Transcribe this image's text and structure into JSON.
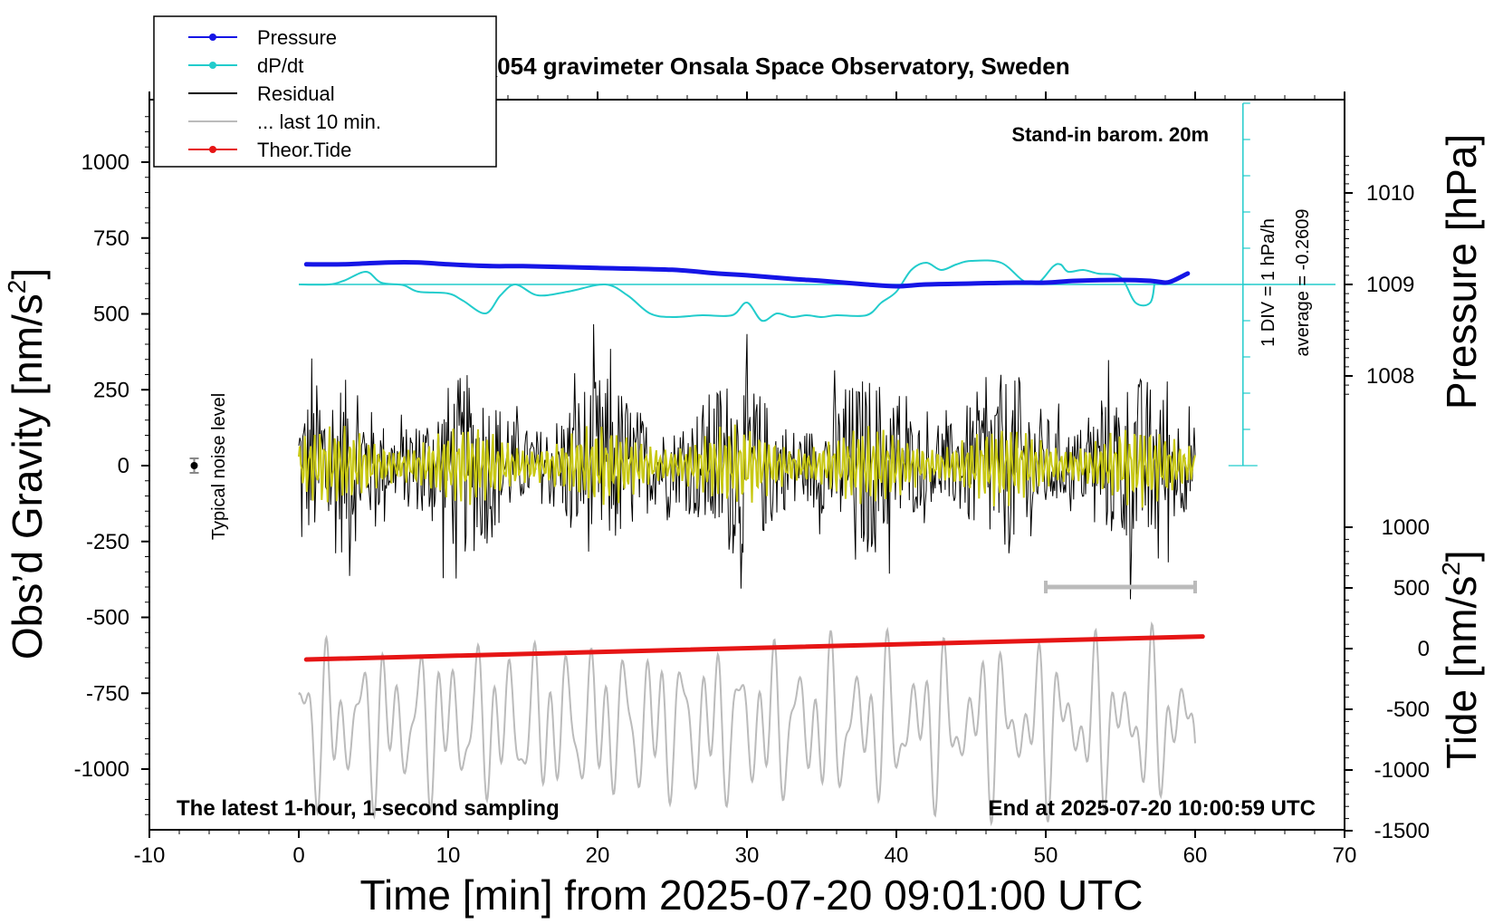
{
  "chart_data": {
    "type": "line",
    "title": "SCG_054 gravimeter Onsala Space Observatory, Sweden",
    "xlabel": "Time [min] from 2025-07-20 09:01:00 UTC",
    "ylabel_left": "Obs’d Gravity [nm/s",
    "ylabel_left_sup": "2",
    "ylabel_left_close": "]",
    "ylabel_pressure": "Pressure [hPa]",
    "ylabel_tide": "Tide [nm/s",
    "ylabel_tide_sup": "2",
    "ylabel_tide_close": "]",
    "xlim": [
      -10,
      70
    ],
    "ylim": [
      -1200,
      1200
    ],
    "x_ticks": [
      "-10",
      "0",
      "10",
      "20",
      "30",
      "40",
      "50",
      "60",
      "70"
    ],
    "x_tick_values": [
      -10,
      0,
      10,
      20,
      30,
      40,
      50,
      60,
      70
    ],
    "y_ticks": [
      "1000",
      "750",
      "500",
      "250",
      "0",
      "-250",
      "-500",
      "-750",
      "-1000"
    ],
    "y_tick_values": [
      1000,
      750,
      500,
      250,
      0,
      -250,
      -500,
      -750,
      -1000
    ],
    "pressure_ticks": [
      "1010",
      "1009",
      "1008"
    ],
    "pressure_tick_values": [
      1010,
      1009,
      1008
    ],
    "tide_ticks": [
      "1000",
      "500",
      "0",
      "-500",
      "-1000",
      "-1500"
    ],
    "tide_tick_values": [
      1000,
      500,
      0,
      -500,
      -1000,
      -1500
    ],
    "legend": {
      "placement": "top-left",
      "entries": [
        {
          "name": "Pressure",
          "color": "#1515e6",
          "marker": true
        },
        {
          "name": "dP/dt",
          "color": "#22cccc",
          "marker": true
        },
        {
          "name": "Residual",
          "color": "#000000",
          "marker": false
        },
        {
          "name": "... last 10 min.",
          "color": "#bbbbbb",
          "marker": false
        },
        {
          "name": "Theor.Tide",
          "color": "#e61515",
          "marker": true
        }
      ]
    },
    "annotations": {
      "barometer": "Stand-in barom. 20m",
      "scale_div": "1 DIV = 1 hPa/h",
      "average": "average = -0.2609",
      "noise": "Typical noise level",
      "bottom_left": "The latest 1-hour, 1-second sampling",
      "bottom_right": "End at 2025-07-20 10:00:59 UTC"
    },
    "colors": {
      "pressure": "#1515e6",
      "dpdt": "#22cccc",
      "residual": "#000000",
      "last10": "#bbbbbb",
      "tide": "#e61515",
      "filtered": "#c8c814"
    },
    "series": [
      {
        "name": "Pressure",
        "x": [
          0.5,
          3,
          6,
          8,
          10,
          13,
          15,
          20,
          25,
          28,
          30,
          33,
          35,
          38,
          40,
          42,
          45,
          48,
          50,
          52,
          55,
          57,
          58,
          58.5,
          59.5
        ],
        "values": [
          1009.22,
          1009.22,
          1009.24,
          1009.24,
          1009.22,
          1009.2,
          1009.2,
          1009.18,
          1009.16,
          1009.12,
          1009.1,
          1009.06,
          1009.04,
          1009.0,
          1008.98,
          1009.0,
          1009.01,
          1009.02,
          1009.02,
          1009.04,
          1009.05,
          1009.04,
          1009.02,
          1009.04,
          1009.12
        ]
      },
      {
        "name": "dP/dt",
        "x": [
          0,
          2,
          3,
          4.5,
          5.5,
          7,
          8,
          10,
          11,
          12.5,
          13.5,
          14.5,
          16,
          18,
          20.5,
          22,
          23.5,
          25,
          27,
          29,
          30,
          31,
          32,
          33,
          34,
          35,
          36,
          38,
          39,
          40,
          41,
          42,
          43,
          44,
          45,
          47,
          48.5,
          49.5,
          50.5,
          51,
          51.5,
          52.5,
          53.5,
          55,
          56,
          57,
          57.3
        ],
        "values": [
          0,
          0,
          0.1,
          0.35,
          0.05,
          -0.02,
          -0.2,
          -0.25,
          -0.45,
          -0.8,
          -0.3,
          0.0,
          -0.3,
          -0.2,
          0.0,
          -0.3,
          -0.8,
          -0.9,
          -0.85,
          -0.85,
          -0.5,
          -1.0,
          -0.8,
          -0.9,
          -0.85,
          -0.9,
          -0.85,
          -0.85,
          -0.5,
          -0.2,
          0.4,
          0.6,
          0.4,
          0.55,
          0.65,
          0.6,
          0.1,
          0.05,
          0.5,
          0.55,
          0.35,
          0.4,
          0.3,
          0.2,
          -0.5,
          -0.5,
          0.1
        ]
      },
      {
        "name": "Theor.Tide",
        "x": [
          0.5,
          60.5
        ],
        "values": [
          -90,
          100
        ]
      }
    ],
    "residual_envelope_nm_s2": 550,
    "residual_range_min": [
      0,
      60
    ],
    "last10_range_min": [
      50,
      60
    ],
    "last10_series_range": [
      -1200,
      -500
    ]
  }
}
